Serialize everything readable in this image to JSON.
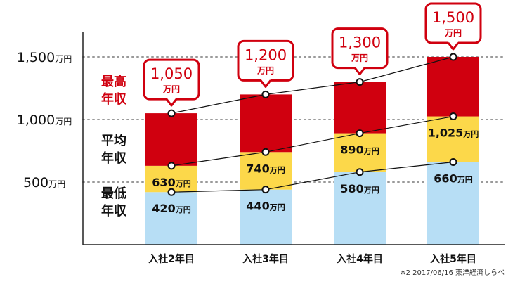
{
  "chart_data": {
    "type": "bar",
    "categories": [
      "入社2年目",
      "入社3年目",
      "入社4年目",
      "入社5年目"
    ],
    "unit": "万円",
    "ylim": [
      0,
      1700
    ],
    "yticks": [
      {
        "value": 500,
        "label": "500"
      },
      {
        "value": 1000,
        "label": "1,000"
      },
      {
        "value": 1500,
        "label": "1,500"
      }
    ],
    "grid": "dotted horizontal",
    "series": [
      {
        "name": "最低年収",
        "values": [
          420,
          440,
          580,
          660
        ],
        "labels": [
          "420",
          "440",
          "580",
          "660"
        ],
        "color": "#b7def5"
      },
      {
        "name": "平均年収",
        "values": [
          630,
          740,
          890,
          1025
        ],
        "labels": [
          "630",
          "740",
          "890",
          "1,025"
        ],
        "color": "#fcd84a"
      },
      {
        "name": "最高年収",
        "values": [
          1050,
          1200,
          1300,
          1500
        ],
        "labels": [
          "1,050",
          "1,200",
          "1,300",
          "1,500"
        ],
        "color": "#d0000f"
      }
    ],
    "legend_labels": {
      "max": [
        "最高",
        "年収"
      ],
      "avg": [
        "平均",
        "年収"
      ],
      "min": [
        "最低",
        "年収"
      ]
    },
    "footnote": "※2 2017/06/16 東洋経済しらべ"
  },
  "colors": {
    "accent": "#d0000f",
    "min_fill": "#b7def5",
    "avg_fill": "#fcd84a",
    "max_fill": "#d0000f",
    "text": "#111111",
    "grid": "#9a9a9a"
  }
}
